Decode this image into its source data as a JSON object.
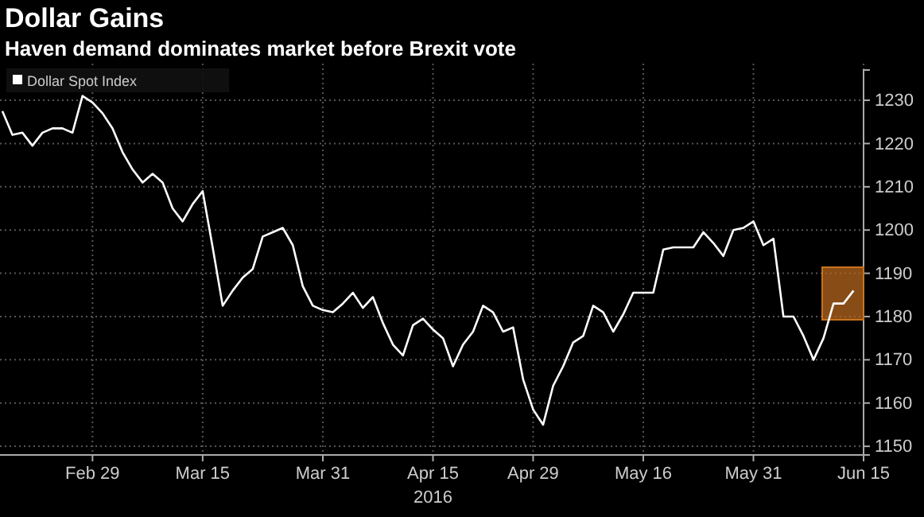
{
  "chart_data": {
    "type": "line",
    "title": "Dollar Gains",
    "subtitle": "Haven demand dominates market before Brexit vote",
    "xlabel": "2016",
    "categories": [
      null,
      null,
      null,
      null,
      null,
      null,
      null,
      null,
      null,
      "Feb 29",
      null,
      null,
      null,
      null,
      null,
      null,
      null,
      null,
      null,
      null,
      "Mar 15",
      null,
      null,
      null,
      null,
      null,
      null,
      null,
      null,
      null,
      null,
      null,
      "Mar 31",
      null,
      null,
      null,
      null,
      null,
      null,
      null,
      null,
      null,
      null,
      "Apr 15",
      null,
      null,
      null,
      null,
      null,
      null,
      null,
      null,
      null,
      "Apr 29",
      null,
      null,
      null,
      null,
      null,
      null,
      null,
      null,
      null,
      null,
      "May 16",
      null,
      null,
      null,
      null,
      null,
      null,
      null,
      null,
      null,
      null,
      "May 31",
      null,
      null,
      null,
      null,
      null,
      null,
      null,
      null,
      null,
      null,
      "Jun 15"
    ],
    "series": [
      {
        "name": "Dollar Spot Index",
        "color": "#ffffff",
        "values": [
          1227.5,
          1222,
          1222.5,
          1219.5,
          1222.5,
          1223.5,
          1223.5,
          1222.5,
          1231,
          1229.5,
          1227,
          1223.5,
          1218,
          1214,
          1211,
          1213,
          1211,
          1205,
          1202,
          1206,
          1209,
          1196,
          1182.5,
          1186,
          1189,
          1191,
          1198.5,
          1199.5,
          1200.5,
          1196.5,
          1187,
          1182.5,
          1181.5,
          1181,
          1183,
          1185.5,
          1182,
          1184.5,
          1178.5,
          1173.5,
          1171,
          1178,
          1179.5,
          1177,
          1175,
          1168.5,
          1173.5,
          1176.5,
          1182.5,
          1181,
          1176.5,
          1177.5,
          1165.5,
          1158.5,
          1155,
          1164,
          1168.5,
          1174,
          1175.5,
          1182.5,
          1181,
          1176.5,
          1180.5,
          1185.5,
          1185.5,
          1185.5,
          1195.5,
          1196,
          1196,
          1196,
          1199.5,
          1197,
          1194,
          1200,
          1200.5,
          1202,
          1196.5,
          1198,
          1180,
          1180,
          1175.5,
          1170,
          1175,
          1183,
          1183,
          1186,
          null
        ]
      }
    ],
    "ylim": [
      1148,
      1237
    ],
    "yticks": [
      1150,
      1160,
      1170,
      1180,
      1190,
      1200,
      1210,
      1220,
      1230
    ],
    "grid": true,
    "legend": "top left",
    "marker": "none",
    "line_style": "solid"
  }
}
